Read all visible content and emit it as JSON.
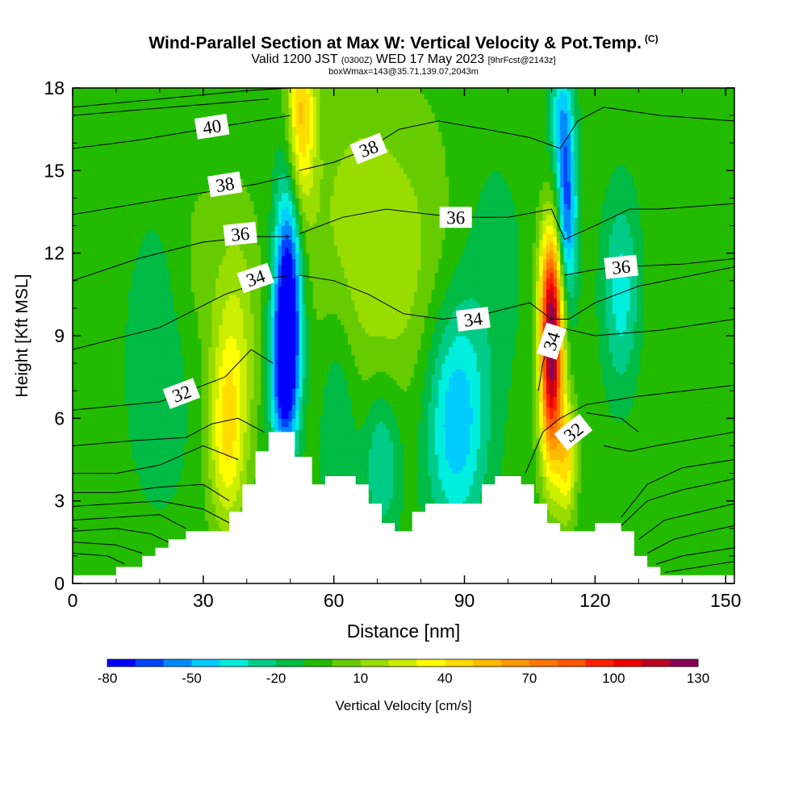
{
  "header": {
    "title": "Wind-Parallel Section at Max W: Vertical Velocity & Pot.Temp.",
    "copyright": "(C)",
    "valid_prefix": "Valid 1200 JST",
    "valid_utc": "(0300Z)",
    "valid_date": "WED 17 May 2023",
    "forecast": "[9hrFcst@2143z]",
    "box_info": "boxWmax=143@35.71,139.07,2043m"
  },
  "chart_data": {
    "type": "heatmap",
    "xlabel": "Distance [nm]",
    "ylabel": "Height [Kft MSL]",
    "xlim": [
      0,
      152
    ],
    "ylim": [
      0,
      18
    ],
    "x_ticks": [
      "0",
      "30",
      "60",
      "90",
      "120",
      "150"
    ],
    "y_ticks": [
      "0",
      "3",
      "6",
      "9",
      "12",
      "15",
      "18"
    ],
    "terrain": [
      [
        0,
        0.3
      ],
      [
        10,
        0.3
      ],
      [
        10,
        0.6
      ],
      [
        16,
        0.6
      ],
      [
        16,
        1.0
      ],
      [
        19,
        1.0
      ],
      [
        19,
        1.3
      ],
      [
        22,
        1.3
      ],
      [
        22,
        1.6
      ],
      [
        26,
        1.6
      ],
      [
        26,
        1.9
      ],
      [
        36,
        1.9
      ],
      [
        36,
        2.6
      ],
      [
        39,
        2.6
      ],
      [
        39,
        3.6
      ],
      [
        42,
        3.6
      ],
      [
        42,
        4.8
      ],
      [
        45,
        4.8
      ],
      [
        45,
        5.5
      ],
      [
        51,
        5.5
      ],
      [
        51,
        4.6
      ],
      [
        55,
        4.6
      ],
      [
        55,
        3.6
      ],
      [
        58,
        3.6
      ],
      [
        58,
        3.9
      ],
      [
        65,
        3.9
      ],
      [
        65,
        3.6
      ],
      [
        68,
        3.6
      ],
      [
        68,
        2.9
      ],
      [
        71,
        2.9
      ],
      [
        71,
        2.2
      ],
      [
        74,
        2.2
      ],
      [
        74,
        1.9
      ],
      [
        78,
        1.9
      ],
      [
        78,
        2.6
      ],
      [
        81,
        2.6
      ],
      [
        81,
        2.9
      ],
      [
        94,
        2.9
      ],
      [
        94,
        3.6
      ],
      [
        97,
        3.6
      ],
      [
        97,
        3.9
      ],
      [
        103,
        3.9
      ],
      [
        103,
        3.6
      ],
      [
        106,
        3.6
      ],
      [
        106,
        2.9
      ],
      [
        109,
        2.9
      ],
      [
        109,
        2.2
      ],
      [
        112,
        2.2
      ],
      [
        112,
        1.9
      ],
      [
        120,
        1.9
      ],
      [
        120,
        2.2
      ],
      [
        126,
        2.2
      ],
      [
        126,
        1.9
      ],
      [
        129,
        1.9
      ],
      [
        129,
        1.0
      ],
      [
        132,
        1.0
      ],
      [
        132,
        0.6
      ],
      [
        135,
        0.6
      ],
      [
        135,
        0.3
      ],
      [
        152,
        0.3
      ],
      [
        152,
        0
      ]
    ],
    "w_features": [
      {
        "x": 49.5,
        "y": 10.5,
        "sx": 2.2,
        "sy": 3.0,
        "w": -80
      },
      {
        "x": 48.5,
        "y": 7.5,
        "sx": 2.2,
        "sy": 2.0,
        "w": -55
      },
      {
        "x": 52.5,
        "y": 17.0,
        "sx": 2.2,
        "sy": 2.5,
        "w": 55
      },
      {
        "x": 35.5,
        "y": 5.5,
        "sx": 3.0,
        "sy": 2.5,
        "w": 45
      },
      {
        "x": 38,
        "y": 9.5,
        "sx": 3.5,
        "sy": 3.0,
        "w": 20
      },
      {
        "x": 110,
        "y": 7.5,
        "sx": 1.8,
        "sy": 2.5,
        "w": 105
      },
      {
        "x": 110,
        "y": 10.5,
        "sx": 2.0,
        "sy": 2.0,
        "w": 70
      },
      {
        "x": 113.5,
        "y": 4.5,
        "sx": 1.5,
        "sy": 1.5,
        "w": 45
      },
      {
        "x": 113.5,
        "y": 13.5,
        "sx": 1.6,
        "sy": 2.5,
        "w": -60
      },
      {
        "x": 112,
        "y": 17.0,
        "sx": 1.8,
        "sy": 1.5,
        "w": -30
      },
      {
        "x": 126,
        "y": 10.5,
        "sx": 3.0,
        "sy": 2.5,
        "w": -30
      },
      {
        "x": 88,
        "y": 6.0,
        "sx": 5.0,
        "sy": 3.0,
        "w": -45
      },
      {
        "x": 75,
        "y": 11.5,
        "sx": 10,
        "sy": 4.0,
        "w": 18
      },
      {
        "x": 63,
        "y": 13.5,
        "sx": 8,
        "sy": 4.0,
        "w": 12
      },
      {
        "x": 96,
        "y": 11.5,
        "sx": 6,
        "sy": 3.5,
        "w": -10
      },
      {
        "x": 140,
        "y": 6.0,
        "sx": 6,
        "sy": 4.0,
        "w": 5
      },
      {
        "x": 20,
        "y": 8.0,
        "sx": 6,
        "sy": 4.0,
        "w": -12
      },
      {
        "x": 71,
        "y": 4.5,
        "sx": 3.0,
        "sy": 2.0,
        "w": -28
      },
      {
        "x": 61,
        "y": 6.0,
        "sx": 3.0,
        "sy": 3.0,
        "w": -18
      },
      {
        "x": 29,
        "y": 11.5,
        "sx": 4.5,
        "sy": 2.5,
        "w": 10
      }
    ],
    "theta_contours": [
      {
        "label": "32",
        "label_at": [
          25,
          6.9
        ],
        "points": [
          [
            0,
            6.3
          ],
          [
            20,
            6.6
          ],
          [
            35,
            7.5
          ],
          [
            41,
            8.5
          ],
          [
            46,
            8.0
          ]
        ]
      },
      {
        "label": "34",
        "label_at": [
          42,
          11.1
        ],
        "points": [
          [
            0,
            8.5
          ],
          [
            20,
            9.3
          ],
          [
            35,
            10.5
          ],
          [
            46,
            11.1
          ],
          [
            50,
            11.2
          ]
        ]
      },
      {
        "label": "36",
        "label_at": [
          38.5,
          12.7
        ],
        "points": [
          [
            0,
            11.0
          ],
          [
            15,
            11.8
          ],
          [
            30,
            12.4
          ],
          [
            42,
            12.6
          ],
          [
            50,
            12.6
          ]
        ]
      },
      {
        "label": "38",
        "label_at": [
          35,
          14.5
        ],
        "points": [
          [
            0,
            13.4
          ],
          [
            15,
            13.8
          ],
          [
            30,
            14.2
          ],
          [
            42,
            14.5
          ],
          [
            50,
            14.8
          ]
        ]
      },
      {
        "label": "40",
        "label_at": [
          32,
          16.6
        ],
        "points": [
          [
            0,
            15.8
          ],
          [
            15,
            16.1
          ],
          [
            30,
            16.5
          ],
          [
            42,
            16.8
          ],
          [
            50,
            17.0
          ]
        ]
      },
      {
        "label": "",
        "label_at": null,
        "points": [
          [
            0,
            17.3
          ],
          [
            20,
            17.6
          ],
          [
            40,
            17.9
          ],
          [
            50,
            18.0
          ]
        ]
      },
      {
        "label": "",
        "label_at": null,
        "points": [
          [
            0,
            17.0
          ],
          [
            15,
            17.2
          ],
          [
            30,
            17.4
          ],
          [
            45,
            17.6
          ]
        ]
      },
      {
        "label": "38",
        "label_at": [
          68,
          15.8
        ],
        "points": [
          [
            52,
            15.0
          ],
          [
            60,
            15.3
          ],
          [
            68,
            15.8
          ],
          [
            75,
            16.5
          ],
          [
            84,
            16.8
          ],
          [
            95,
            16.5
          ],
          [
            105,
            16.2
          ],
          [
            112,
            15.8
          ],
          [
            116,
            16.8
          ],
          [
            122,
            17.3
          ],
          [
            135,
            17.0
          ],
          [
            152,
            16.8
          ]
        ]
      },
      {
        "label": "36",
        "label_at": [
          88,
          13.3
        ],
        "points": [
          [
            52,
            12.7
          ],
          [
            62,
            13.3
          ],
          [
            72,
            13.6
          ],
          [
            88,
            13.3
          ],
          [
            100,
            13.3
          ],
          [
            110,
            13.6
          ],
          [
            113,
            12.5
          ],
          [
            120,
            13.0
          ],
          [
            128,
            13.6
          ],
          [
            135,
            13.6
          ],
          [
            152,
            13.8
          ]
        ]
      },
      {
        "label": "34",
        "label_at": [
          92,
          9.6
        ],
        "points": [
          [
            52,
            11.2
          ],
          [
            60,
            11.0
          ],
          [
            68,
            10.5
          ],
          [
            76,
            9.8
          ],
          [
            85,
            9.6
          ],
          [
            95,
            9.8
          ],
          [
            105,
            10.2
          ],
          [
            110,
            9.6
          ],
          [
            114,
            9.6
          ],
          [
            120,
            10.2
          ],
          [
            130,
            10.8
          ],
          [
            152,
            11.5
          ]
        ]
      },
      {
        "label": "36",
        "label_at": [
          126,
          11.5
        ],
        "points": [
          [
            113,
            11.2
          ],
          [
            120,
            11.4
          ],
          [
            126,
            11.5
          ],
          [
            140,
            11.6
          ],
          [
            152,
            11.8
          ]
        ]
      },
      {
        "label": "34",
        "label_at": [
          110,
          8.8
        ],
        "points": [
          [
            107,
            7.0
          ],
          [
            108,
            8.0
          ],
          [
            110,
            9.0
          ],
          [
            112,
            9.3
          ],
          [
            120,
            9.0
          ],
          [
            135,
            9.2
          ],
          [
            152,
            9.6
          ]
        ]
      },
      {
        "label": "32",
        "label_at": [
          115,
          5.5
        ],
        "points": [
          [
            104,
            4.0
          ],
          [
            108,
            5.5
          ],
          [
            112,
            6.0
          ],
          [
            118,
            6.5
          ],
          [
            130,
            6.8
          ],
          [
            152,
            7.2
          ]
        ]
      },
      {
        "label": "",
        "label_at": null,
        "points": [
          [
            0,
            5.0
          ],
          [
            15,
            5.2
          ],
          [
            26,
            5.3
          ],
          [
            32,
            5.8
          ],
          [
            38,
            6.0
          ],
          [
            44,
            5.5
          ]
        ]
      },
      {
        "label": "",
        "label_at": null,
        "points": [
          [
            0,
            4.0
          ],
          [
            10,
            4.0
          ],
          [
            20,
            4.3
          ],
          [
            30,
            5.0
          ],
          [
            38,
            4.5
          ]
        ]
      },
      {
        "label": "",
        "label_at": null,
        "points": [
          [
            0,
            3.3
          ],
          [
            10,
            3.3
          ],
          [
            20,
            3.5
          ],
          [
            30,
            3.6
          ],
          [
            36,
            3.0
          ]
        ]
      },
      {
        "label": "",
        "label_at": null,
        "points": [
          [
            0,
            2.8
          ],
          [
            10,
            2.9
          ],
          [
            20,
            3.0
          ],
          [
            30,
            2.7
          ],
          [
            36,
            2.2
          ]
        ]
      },
      {
        "label": "",
        "label_at": null,
        "points": [
          [
            0,
            2.3
          ],
          [
            10,
            2.4
          ],
          [
            20,
            2.5
          ],
          [
            26,
            2.0
          ]
        ]
      },
      {
        "label": "",
        "label_at": null,
        "points": [
          [
            0,
            1.9
          ],
          [
            10,
            2.0
          ],
          [
            18,
            1.8
          ],
          [
            22,
            1.5
          ]
        ]
      },
      {
        "label": "",
        "label_at": null,
        "points": [
          [
            0,
            1.5
          ],
          [
            10,
            1.4
          ],
          [
            16,
            1.1
          ]
        ]
      },
      {
        "label": "",
        "label_at": null,
        "points": [
          [
            0,
            1.1
          ],
          [
            8,
            1.0
          ],
          [
            12,
            0.7
          ]
        ]
      },
      {
        "label": "",
        "label_at": null,
        "points": [
          [
            126,
            2.4
          ],
          [
            132,
            3.6
          ],
          [
            140,
            4.2
          ],
          [
            152,
            4.5
          ]
        ]
      },
      {
        "label": "",
        "label_at": null,
        "points": [
          [
            126,
            2.1
          ],
          [
            132,
            3.0
          ],
          [
            140,
            3.4
          ],
          [
            152,
            3.8
          ]
        ]
      },
      {
        "label": "",
        "label_at": null,
        "points": [
          [
            130,
            1.6
          ],
          [
            136,
            2.3
          ],
          [
            144,
            2.6
          ],
          [
            152,
            2.9
          ]
        ]
      },
      {
        "label": "",
        "label_at": null,
        "points": [
          [
            132,
            1.1
          ],
          [
            138,
            1.6
          ],
          [
            146,
            1.9
          ],
          [
            152,
            2.1
          ]
        ]
      },
      {
        "label": "",
        "label_at": null,
        "points": [
          [
            134,
            0.7
          ],
          [
            140,
            1.0
          ],
          [
            152,
            1.3
          ]
        ]
      },
      {
        "label": "",
        "label_at": null,
        "points": [
          [
            136,
            0.4
          ],
          [
            144,
            0.6
          ],
          [
            152,
            0.8
          ]
        ]
      },
      {
        "label": "",
        "label_at": null,
        "points": [
          [
            118,
            6.2
          ],
          [
            126,
            6.0
          ],
          [
            130,
            5.5
          ]
        ]
      },
      {
        "label": "",
        "label_at": null,
        "points": [
          [
            122,
            5.0
          ],
          [
            128,
            4.8
          ],
          [
            134,
            5.0
          ],
          [
            152,
            5.5
          ]
        ]
      }
    ],
    "colorbar": {
      "label": "Vertical Velocity [cm/s]",
      "min": -80,
      "max": 130,
      "step": 10,
      "tick_labels": [
        "-80",
        "-50",
        "-20",
        "10",
        "40",
        "70",
        "100",
        "130"
      ],
      "colors": [
        "#0000ff",
        "#0044ff",
        "#0088ff",
        "#00ccff",
        "#00eedd",
        "#00cc88",
        "#00bb44",
        "#22bb00",
        "#66cc00",
        "#99dd00",
        "#ccee00",
        "#ffff00",
        "#ffdd00",
        "#ffbb00",
        "#ff9900",
        "#ff7700",
        "#ff5500",
        "#ff2200",
        "#ee0000",
        "#bb0022",
        "#880055"
      ]
    }
  }
}
